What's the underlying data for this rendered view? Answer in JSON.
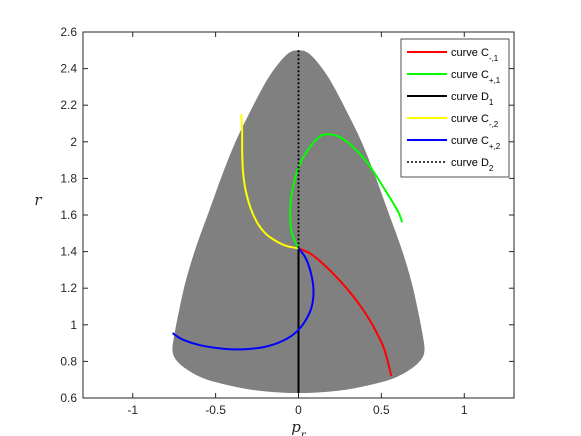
{
  "chart_data": {
    "type": "line",
    "xlabel": "p",
    "xlabel_sub": "r",
    "ylabel": "r",
    "xlim": [
      -1.3,
      1.3
    ],
    "ylim": [
      0.6,
      2.6
    ],
    "xticks": [
      -1,
      -0.5,
      0,
      0.5,
      1
    ],
    "xtick_labels": [
      "-1",
      "-0.5",
      "0",
      "0.5",
      "1"
    ],
    "yticks": [
      0.6,
      0.8,
      1,
      1.2,
      1.4,
      1.6,
      1.8,
      2,
      2.2,
      2.4,
      2.6
    ],
    "ytick_labels": [
      "0.6",
      "0.8",
      "1",
      "1.2",
      "1.4",
      "1.6",
      "1.8",
      "2",
      "2.2",
      "2.4",
      "2.6"
    ],
    "grid": false,
    "legend_position": "top-right",
    "region": {
      "fill": "#808080",
      "boundary": [
        [
          0,
          2.5
        ],
        [
          0.05,
          2.49
        ],
        [
          0.1,
          2.45
        ],
        [
          0.16,
          2.38
        ],
        [
          0.22,
          2.29
        ],
        [
          0.3,
          2.15
        ],
        [
          0.38,
          2.0
        ],
        [
          0.46,
          1.82
        ],
        [
          0.54,
          1.62
        ],
        [
          0.62,
          1.42
        ],
        [
          0.68,
          1.24
        ],
        [
          0.72,
          1.08
        ],
        [
          0.75,
          0.94
        ],
        [
          0.76,
          0.86
        ],
        [
          0.74,
          0.81
        ],
        [
          0.68,
          0.76
        ],
        [
          0.58,
          0.71
        ],
        [
          0.45,
          0.675
        ],
        [
          0.3,
          0.647
        ],
        [
          0.15,
          0.632
        ],
        [
          0,
          0.627
        ],
        [
          -0.15,
          0.632
        ],
        [
          -0.3,
          0.647
        ],
        [
          -0.45,
          0.675
        ],
        [
          -0.58,
          0.71
        ],
        [
          -0.68,
          0.76
        ],
        [
          -0.74,
          0.81
        ],
        [
          -0.76,
          0.86
        ],
        [
          -0.75,
          0.94
        ],
        [
          -0.72,
          1.08
        ],
        [
          -0.68,
          1.24
        ],
        [
          -0.62,
          1.42
        ],
        [
          -0.54,
          1.62
        ],
        [
          -0.46,
          1.82
        ],
        [
          -0.38,
          2.0
        ],
        [
          -0.3,
          2.15
        ],
        [
          -0.22,
          2.29
        ],
        [
          -0.16,
          2.38
        ],
        [
          -0.1,
          2.45
        ],
        [
          -0.05,
          2.49
        ]
      ]
    },
    "series": [
      {
        "name": "curve C",
        "name_sub": "-,1",
        "color": "#ff0000",
        "dash": "solid",
        "points": [
          [
            0,
            1.418
          ],
          [
            0.07,
            1.39
          ],
          [
            0.14,
            1.34
          ],
          [
            0.22,
            1.27
          ],
          [
            0.29,
            1.2
          ],
          [
            0.36,
            1.12
          ],
          [
            0.42,
            1.04
          ],
          [
            0.47,
            0.96
          ],
          [
            0.52,
            0.86
          ],
          [
            0.56,
            0.72
          ]
        ]
      },
      {
        "name": "curve C",
        "name_sub": "+,1",
        "color": "#00ff00",
        "dash": "solid",
        "points": [
          [
            0,
            1.418
          ],
          [
            -0.04,
            1.5
          ],
          [
            -0.05,
            1.6
          ],
          [
            -0.04,
            1.72
          ],
          [
            0,
            1.86
          ],
          [
            0.06,
            1.96
          ],
          [
            0.13,
            2.03
          ],
          [
            0.18,
            2.04
          ],
          [
            0.24,
            2.03
          ],
          [
            0.32,
            1.98
          ],
          [
            0.42,
            1.88
          ],
          [
            0.52,
            1.74
          ],
          [
            0.6,
            1.62
          ],
          [
            0.625,
            1.56
          ]
        ]
      },
      {
        "name": "curve D",
        "name_sub": "1",
        "color": "#000000",
        "dash": "solid",
        "points": [
          [
            0,
            0.627
          ],
          [
            0,
            1.418
          ]
        ]
      },
      {
        "name": "curve C",
        "name_sub": "-,2",
        "color": "#ffff00",
        "dash": "solid",
        "points": [
          [
            0,
            1.418
          ],
          [
            -0.07,
            1.43
          ],
          [
            -0.14,
            1.46
          ],
          [
            -0.2,
            1.5
          ],
          [
            -0.25,
            1.56
          ],
          [
            -0.29,
            1.64
          ],
          [
            -0.32,
            1.74
          ],
          [
            -0.335,
            1.84
          ],
          [
            -0.34,
            1.96
          ],
          [
            -0.34,
            2.06
          ],
          [
            -0.345,
            2.15
          ]
        ]
      },
      {
        "name": "curve C",
        "name_sub": "+,2",
        "color": "#0000ff",
        "dash": "solid",
        "points": [
          [
            0,
            1.418
          ],
          [
            0.04,
            1.37
          ],
          [
            0.07,
            1.3
          ],
          [
            0.09,
            1.2
          ],
          [
            0.08,
            1.1
          ],
          [
            0.04,
            1.02
          ],
          [
            -0.02,
            0.955
          ],
          [
            -0.1,
            0.91
          ],
          [
            -0.2,
            0.88
          ],
          [
            -0.3,
            0.868
          ],
          [
            -0.4,
            0.866
          ],
          [
            -0.5,
            0.874
          ],
          [
            -0.6,
            0.89
          ],
          [
            -0.7,
            0.92
          ],
          [
            -0.76,
            0.955
          ]
        ]
      },
      {
        "name": "curve D",
        "name_sub": "2",
        "color": "#000000",
        "dash": "dotted",
        "points": [
          [
            0,
            1.418
          ],
          [
            0,
            2.5
          ]
        ]
      }
    ]
  }
}
